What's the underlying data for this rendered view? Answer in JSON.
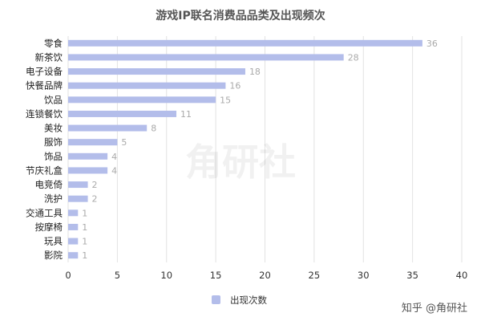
{
  "chart_data": {
    "type": "bar",
    "orientation": "horizontal",
    "title": "游戏IP联名消费品品类及出现频次",
    "categories": [
      "零食",
      "新茶饮",
      "电子设备",
      "快餐品牌",
      "饮品",
      "连锁餐饮",
      "美妆",
      "服饰",
      "饰品",
      "节庆礼盒",
      "电竞倚",
      "洗护",
      "交通工具",
      "按摩椅",
      "玩具",
      "影院"
    ],
    "series": [
      {
        "name": "出现次数",
        "values": [
          36,
          28,
          18,
          16,
          15,
          11,
          8,
          5,
          4,
          4,
          2,
          2,
          1,
          1,
          1,
          1
        ]
      }
    ],
    "xlim": [
      0,
      40
    ],
    "xticks": [
      0,
      5,
      10,
      15,
      20,
      25,
      30,
      35,
      40
    ],
    "grid": "vertical",
    "legend_position": "bottom",
    "bar_color": "#b3bdea"
  },
  "watermark": "角研社",
  "credit": "知乎 @角研社"
}
